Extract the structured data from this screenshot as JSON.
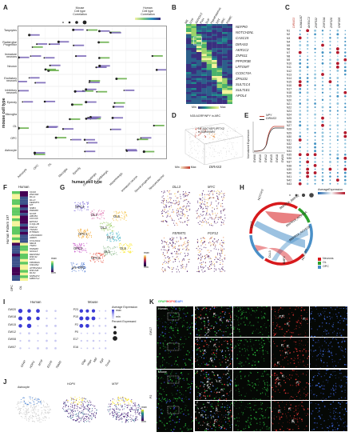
{
  "panels": {
    "A": {
      "letter": "A",
      "legend_mouse": {
        "title": "Mouse\nCell type\nCorrelation",
        "ticks": [
          "0.2",
          "0.4",
          "0.6",
          "0.8"
        ]
      },
      "legend_human": {
        "title": "Human\nCell type\nCorrelation",
        "ticks": [
          "0.2",
          "0.6"
        ]
      },
      "ylabel": "mouse cell type",
      "xlabel": "human cell type",
      "row_labels": [
        "Tanycytes",
        "Radial glia/\nProgenitor",
        "Immature\nneurons",
        "Neuron",
        "Excitatory\nneurons",
        "Inhibitory\nneurons",
        "Ependy",
        "Microglia",
        "OL",
        "OPC",
        "Astrocyte"
      ],
      "col_labels": [
        "Astrocyte",
        "OPC",
        "OL",
        "Microglia",
        "Ependy",
        "Glutamatergic",
        "GABAergic",
        "Histaminergic",
        "Immature neuron",
        "Neural progenitor",
        "Neuroendocrine"
      ]
    },
    "B": {
      "letter": "B",
      "col_labels": [
        "ME",
        "OTP",
        "AVP/OXT",
        "PVH",
        "SUF",
        "Hypothalamus",
        "SST",
        "ARC",
        "POMC"
      ],
      "genes": [
        "NEFPI0",
        "NOTCH2NL",
        "CASC15",
        "DIRAS3",
        "AKR1C2",
        "ZNF611",
        "PPP2R3B",
        "LRTOMT",
        "CCDC74A",
        "ZFN331",
        "SULT1C4",
        "SULT1E1",
        "APOL4"
      ],
      "legend": {
        "min": "Min",
        "max": "Max"
      }
    },
    "C": {
      "letter": "C",
      "genes": [
        "DIRAS3",
        "KIAA1107",
        "AKR1C2",
        "ZNF532",
        "ZNF33A",
        "ZNF320",
        "SNF305"
      ],
      "rows": [
        "N1",
        "N2",
        "N3",
        "N4",
        "N5",
        "N6",
        "N7",
        "N8",
        "N9",
        "N10",
        "N11",
        "N12",
        "N13",
        "N14",
        "N15",
        "N16",
        "N17",
        "N18",
        "N19",
        "N20",
        "N21",
        "N22",
        "N23",
        "N24",
        "N25",
        "N26",
        "N27",
        "N28",
        "N29",
        "N30",
        "N31",
        "N32",
        "N33",
        "N34",
        "N35",
        "N36",
        "N37",
        "N38",
        "N39",
        "N40",
        "N41",
        "N42",
        "N43"
      ],
      "legend_title": "AverageExpression",
      "legend_ticks": [
        "2",
        "0",
        "-1",
        "-2"
      ],
      "size_title": "Percent\nExpressed",
      "size_ticks": [
        "0",
        "20",
        "40",
        "60"
      ]
    },
    "D": {
      "letter": "D",
      "title": "N35 AGRP/NPY in ARC",
      "annotation": "N7 ADCYAP1/PITX2\nin SMN/VMN",
      "xlabel": "DIRAS3",
      "legend": {
        "min": "Min",
        "max": "Max"
      }
    },
    "E": {
      "letter": "E",
      "legend": [
        "NPY",
        "DIRAS3"
      ],
      "ylabel": "Nomalized Expression",
      "xlabels": [
        "GW08",
        "GW10",
        "GW12",
        "GW15",
        "GW18",
        "GW20"
      ]
    },
    "F": {
      "letter": "F",
      "title": "Human",
      "ylabel": "Human Pattern 197",
      "cols": [
        "OPC",
        "OL"
      ],
      "genes": [
        "CD10",
        "ZNF300",
        "DLL1",
        "DLL3",
        "FERMT1",
        "MT",
        "SSB1",
        "PRDM8",
        "SOX8",
        "ABCB1",
        "CKOX8",
        "EPHA3",
        "C1QL1B",
        "FGF12",
        "TSHZ3",
        "PTPRZ1",
        "LINC00403",
        "ARRN",
        "COL20A1",
        "NEU4",
        "TSPO",
        "HMGB3",
        "GNAL3",
        "DENND2",
        "DSC11",
        "MYC",
        "FRMD4A",
        "OSGIN1",
        "ATP6V0A4",
        "DSCAM",
        "DLK1",
        "NMNAT2",
        "MBOTL2"
      ],
      "legend": {
        "max": "max",
        "min": "min"
      }
    },
    "G": {
      "letter": "G",
      "clusters": [
        "OPC4",
        "OL2",
        "OL6",
        "DL3",
        "OPC1",
        "DL4",
        "OPC2",
        "OL5",
        "OL1",
        "OPC3",
        "pre-OPC"
      ],
      "genes": [
        "DLL3",
        "MYC",
        "FERMT1",
        "FGF12"
      ],
      "legend": {
        "max": "max",
        "min": "min"
      }
    },
    "H": {
      "letter": "H",
      "labels": [
        "NOTCH2",
        "DLL1",
        "DLL3",
        "NOTCH3",
        "BMPR1A_ACVR2A",
        "BMPR1A_ACVR2B",
        "BMPR1A_BMPR2",
        "BMP2"
      ],
      "legend": [
        {
          "name": "Neurons",
          "color": "#d7191c"
        },
        {
          "name": "OL",
          "color": "#2ca02c"
        },
        {
          "name": "OPC",
          "color": "#4a90c8"
        }
      ]
    },
    "I": {
      "letter": "I",
      "title_human": "Human",
      "title_mouse": "Mouse",
      "human_rows": [
        "GW20",
        "GW18",
        "GW15",
        "GW12",
        "GW08",
        "GW07"
      ],
      "mouse_rows": [
        "P23",
        "P10",
        "P2",
        "P0",
        "E17",
        "E16"
      ],
      "human_genes": [
        "GFAP",
        "HOPX",
        "MTIF",
        "EGFR",
        "TNMD"
      ],
      "mouse_genes": [
        "Gfap",
        "Hopx",
        "Mtif",
        "Egfr",
        "Tnmd"
      ],
      "legend_title": "Average Expression",
      "legend_ticks": [
        "max",
        "min"
      ],
      "size_title": "Percent Expressed",
      "size_ticks": [
        "50",
        "75",
        "100"
      ]
    },
    "J": {
      "letter": "J",
      "labels": [
        "Astrocyte",
        "HOPX",
        "MTIF"
      ],
      "legend": {
        "max": "max",
        "min": "min"
      }
    },
    "K": {
      "letter": "K",
      "stain": [
        "GFAP",
        "HOPX",
        "DAPI"
      ],
      "stain_colors": [
        "#2ecc40",
        "#ff3b3b",
        "#4a7bff"
      ],
      "rows": [
        "Human",
        "Mouse"
      ],
      "row_tags": [
        "GW17",
        "P2"
      ],
      "insets": [
        "1",
        "2",
        "1",
        "2"
      ]
    }
  }
}
